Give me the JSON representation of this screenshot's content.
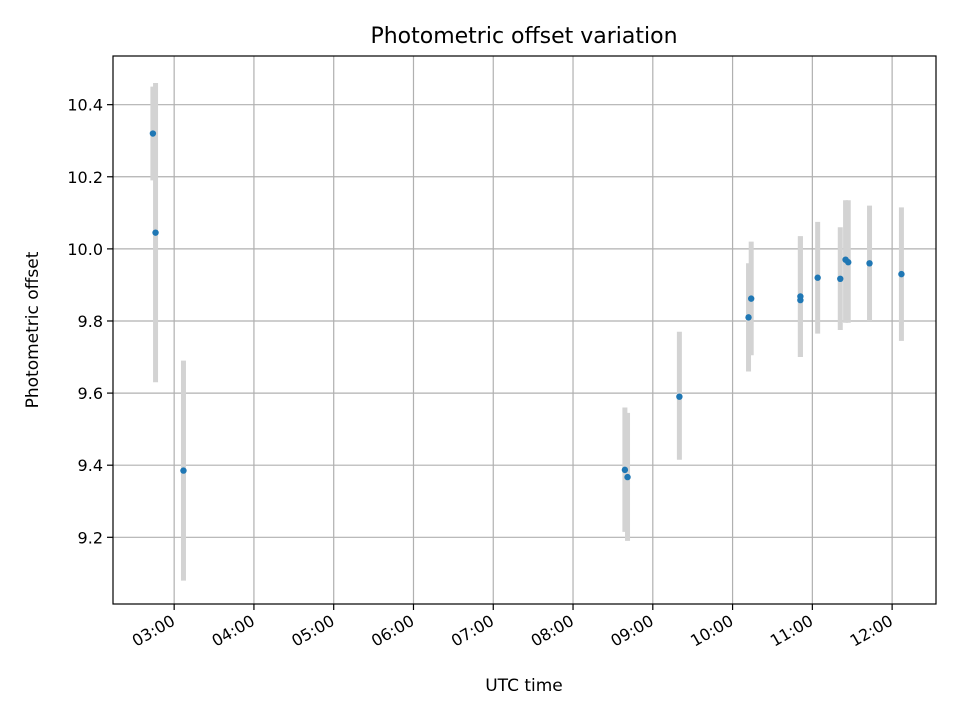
{
  "chart_data": {
    "type": "scatter",
    "title": "Photometric offset variation",
    "xlabel": "UTC time",
    "ylabel": "Photometric offset",
    "grid": true,
    "legend": "none",
    "xlim": [
      "02:14",
      "12:33"
    ],
    "ylim": [
      9.015,
      10.535
    ],
    "x_ticks": [
      "03:00",
      "04:00",
      "05:00",
      "06:00",
      "07:00",
      "08:00",
      "09:00",
      "10:00",
      "11:00",
      "12:00"
    ],
    "y_ticks": [
      9.2,
      9.4,
      9.6,
      9.8,
      10.0,
      10.2,
      10.4
    ],
    "y_tick_labels": [
      "9.2",
      "9.4",
      "9.6",
      "9.8",
      "10.0",
      "10.2",
      "10.4"
    ],
    "colors": {
      "points": "#1f77b4",
      "error_bars": "#d3d3d3",
      "grid": "#b0b0b0"
    },
    "series": [
      {
        "points": [
          {
            "time": "02:44",
            "y": 10.32,
            "low": 10.19,
            "high": 10.45
          },
          {
            "time": "02:46",
            "y": 10.045,
            "low": 9.63,
            "high": 10.46
          },
          {
            "time": "03:07",
            "y": 9.385,
            "low": 9.08,
            "high": 9.69
          },
          {
            "time": "08:39",
            "y": 9.387,
            "low": 9.215,
            "high": 9.56
          },
          {
            "time": "08:41",
            "y": 9.367,
            "low": 9.19,
            "high": 9.545
          },
          {
            "time": "09:20",
            "y": 9.59,
            "low": 9.415,
            "high": 9.77
          },
          {
            "time": "10:12",
            "y": 9.81,
            "low": 9.66,
            "high": 9.96
          },
          {
            "time": "10:14",
            "y": 9.862,
            "low": 9.705,
            "high": 10.02
          },
          {
            "time": "10:51",
            "y": 9.858,
            "low": 9.7,
            "high": 10.035
          },
          {
            "time": "10:51",
            "y": 9.868,
            "low": 9.7,
            "high": 10.035
          },
          {
            "time": "11:04",
            "y": 9.92,
            "low": 9.765,
            "high": 10.075
          },
          {
            "time": "11:21",
            "y": 9.917,
            "low": 9.775,
            "high": 10.06
          },
          {
            "time": "11:25",
            "y": 9.97,
            "low": 9.795,
            "high": 10.135
          },
          {
            "time": "11:27",
            "y": 9.963,
            "low": 9.795,
            "high": 10.135
          },
          {
            "time": "11:43",
            "y": 9.96,
            "low": 9.8,
            "high": 10.12
          },
          {
            "time": "12:07",
            "y": 9.93,
            "low": 9.745,
            "high": 10.115
          }
        ]
      }
    ]
  }
}
